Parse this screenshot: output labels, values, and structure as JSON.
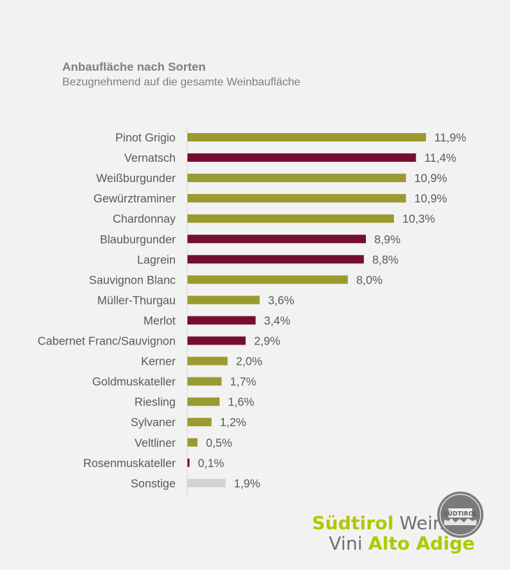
{
  "chart_data": {
    "type": "bar",
    "orientation": "horizontal",
    "title": "Anbaufläche nach Sorten",
    "subtitle": "Bezugnehmend auf die gesamte Weinbaufläche",
    "xlim": [
      0,
      12.5
    ],
    "categories": [
      "Pinot Grigio",
      "Vernatsch",
      "Weißburgunder",
      "Gewürztraminer",
      "Chardonnay",
      "Blauburgunder",
      "Lagrein",
      "Sauvignon Blanc",
      "Müller-Thurgau",
      "Merlot",
      "Cabernet Franc/Sauvignon",
      "Kerner",
      "Goldmuskateller",
      "Riesling",
      "Sylvaner",
      "Veltliner",
      "Rosenmuskateller",
      "Sonstige"
    ],
    "values": [
      11.9,
      11.4,
      10.9,
      10.9,
      10.3,
      8.9,
      8.8,
      8.0,
      3.6,
      3.4,
      2.9,
      2.0,
      1.7,
      1.6,
      1.2,
      0.5,
      0.1,
      1.9
    ],
    "value_labels": [
      "11,9%",
      "11,4%",
      "10,9%",
      "10,9%",
      "10,3%",
      "8,9%",
      "8,8%",
      "8,0%",
      "3,6%",
      "3,4%",
      "2,9%",
      "2,0%",
      "1,7%",
      "1,6%",
      "1,2%",
      "0,5%",
      "0,1%",
      "1,9%"
    ],
    "wine_type": [
      "white",
      "red",
      "white",
      "white",
      "white",
      "red",
      "red",
      "white",
      "white",
      "red",
      "red",
      "white",
      "white",
      "white",
      "white",
      "white",
      "red",
      "other"
    ],
    "colors": {
      "white": "#9a9a2f",
      "red": "#750d33",
      "other": "#d3d3d3",
      "axis": "#d9d9d9"
    }
  },
  "logo": {
    "line1_a": "Südtirol",
    "line1_b": " Wein",
    "line2_a": "Vini ",
    "line2_b": "Alto Adige",
    "seal_text": "SÜDTIROL"
  }
}
